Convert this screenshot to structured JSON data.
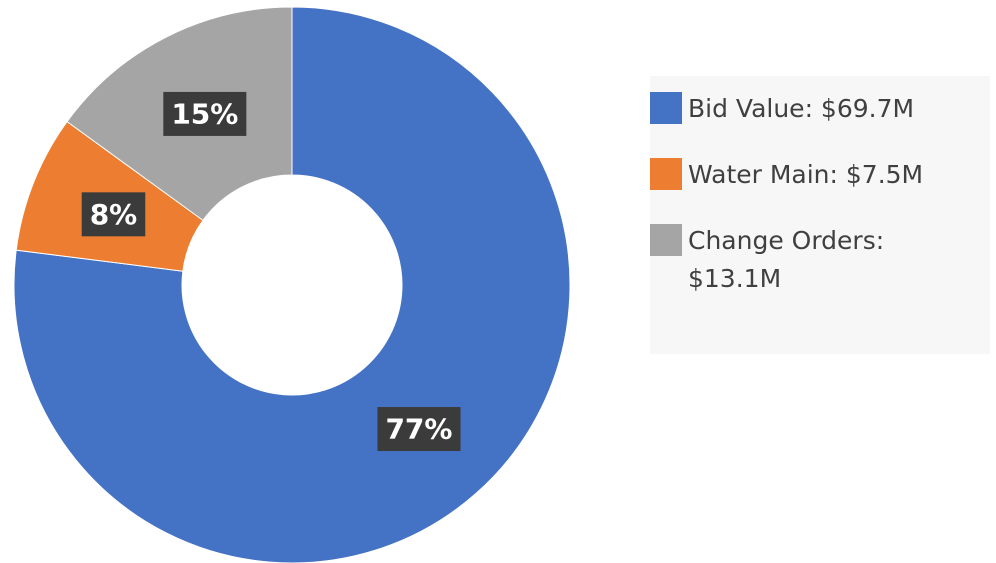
{
  "chart_data": {
    "type": "donut",
    "categories": [
      "Bid Value: $69.7M",
      "Water Main: $7.5M",
      "Change Orders: $13.1M"
    ],
    "values": [
      77,
      8,
      15
    ],
    "value_labels": [
      "77%",
      "8%",
      "15%"
    ],
    "colors": [
      "#4472c4",
      "#ed7d31",
      "#a5a5a5"
    ],
    "legend": "right"
  }
}
